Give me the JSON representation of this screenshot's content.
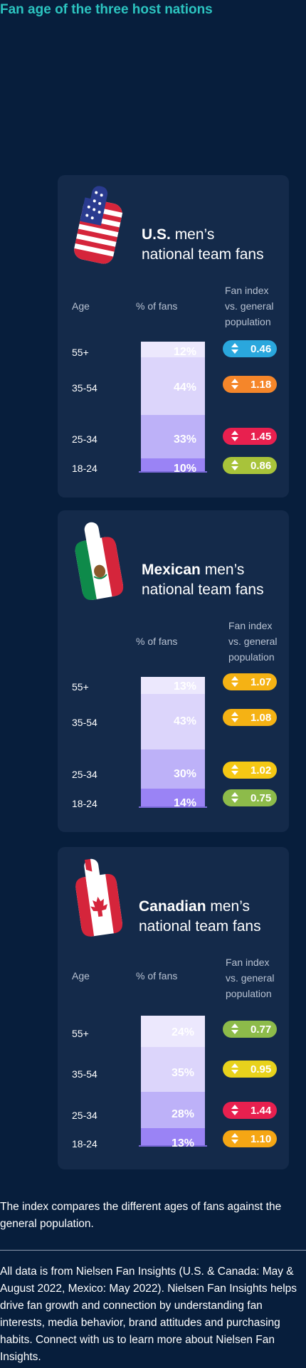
{
  "page_title": "Fan age of the three host nations",
  "colors": {
    "background": "#071e3c",
    "card": "#142a4a",
    "title": "#2cc4c0",
    "seg_55_plus": "#ece8fd",
    "seg_35_54": "#dcd5fb",
    "seg_25_34": "#bdb1f8",
    "seg_18_24": "#9a83f5"
  },
  "column_headers": {
    "age": "Age",
    "pct": "% of fans",
    "fan_index": [
      "Fan index",
      "vs. general",
      "population"
    ]
  },
  "chart_data": [
    {
      "type": "bar",
      "stacked": true,
      "title_bold": "U.S.",
      "title_rest": "men’s",
      "title_line2": "national team fans",
      "icon": "us-flag-hand-icon",
      "categories": [
        "55+",
        "35-54",
        "25-34",
        "18-24"
      ],
      "pct_labels": [
        "12%",
        "44%",
        "33%",
        "10%"
      ],
      "values": [
        12,
        44,
        33,
        10
      ],
      "fan_index": [
        "0.46",
        "1.18",
        "1.45",
        "0.86"
      ],
      "index_colors": [
        "#2aa7dd",
        "#f5862a",
        "#e8204f",
        "#a8c33a"
      ]
    },
    {
      "type": "bar",
      "stacked": true,
      "title_bold": "Mexican",
      "title_rest": "men’s",
      "title_line2": "national team fans",
      "icon": "mexico-flag-hand-icon",
      "categories": [
        "55+",
        "35-54",
        "25-34",
        "18-24"
      ],
      "pct_labels": [
        "13%",
        "43%",
        "30%",
        "14%"
      ],
      "values": [
        13,
        43,
        30,
        14
      ],
      "fan_index": [
        "1.07",
        "1.08",
        "1.02",
        "0.75"
      ],
      "index_colors": [
        "#f5b214",
        "#f5b214",
        "#f5c814",
        "#8dbb4a"
      ]
    },
    {
      "type": "bar",
      "stacked": true,
      "title_bold": "Canadian",
      "title_rest": "men’s",
      "title_line2": "national team fans",
      "icon": "canada-flag-hand-icon",
      "categories": [
        "55+",
        "35-54",
        "25-34",
        "18-24"
      ],
      "pct_labels": [
        "24%",
        "35%",
        "28%",
        "13%"
      ],
      "values": [
        24,
        35,
        28,
        13
      ],
      "fan_index": [
        "0.77",
        "0.95",
        "1.44",
        "1.10"
      ],
      "index_colors": [
        "#8dbb4a",
        "#e8d21c",
        "#e8204f",
        "#f5a614"
      ]
    }
  ],
  "note": "The index compares the different ages of fans against the general population.",
  "footer": "All data is from Nielsen Fan Insights (U.S. & Canada: May & August 2022, Mexico: May 2022). Nielsen Fan Insights helps drive fan growth and connection by understanding fan interests, media behavior, brand attitudes and purchasing habits. Connect with us to learn more about Nielsen Fan Insights."
}
